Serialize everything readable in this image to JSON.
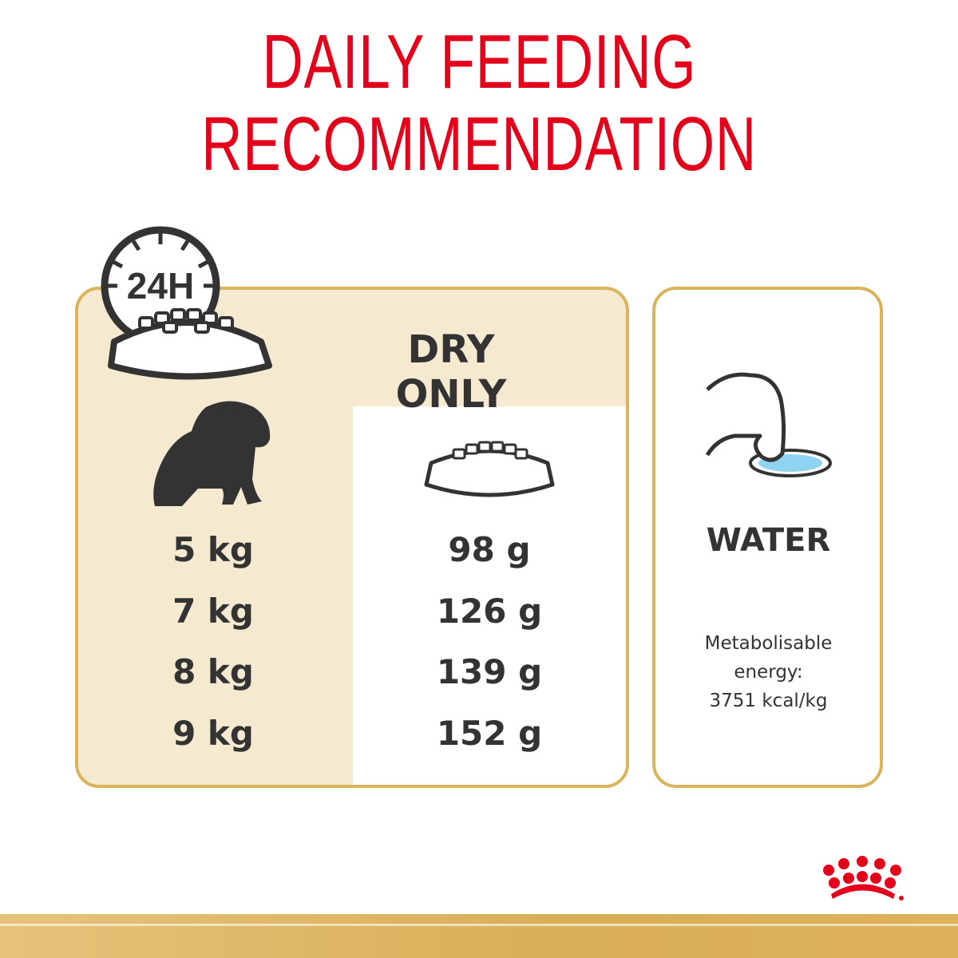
{
  "title": {
    "line1": "DAILY FEEDING",
    "line2": "RECOMMENDATION"
  },
  "clock_icon": {
    "label": "24H",
    "icon": "clock-with-food-bowl-icon"
  },
  "feeding": {
    "heading": "DRY ONLY",
    "rows": [
      {
        "weight": "5 kg",
        "amount": "98 g"
      },
      {
        "weight": "7 kg",
        "amount": "126 g"
      },
      {
        "weight": "8 kg",
        "amount": "139 g"
      },
      {
        "weight": "9 kg",
        "amount": "152 g"
      }
    ]
  },
  "water": {
    "label": "WATER",
    "icon": "water-bowl-icon"
  },
  "energy": {
    "line1": "Metabolisable",
    "line2": "energy:",
    "line3": "3751 kcal/kg"
  },
  "logo": {
    "brand": "Royal Canin"
  },
  "colors": {
    "accent": "#e2001a",
    "gold": "#d9b45a",
    "panel": "#f5ead0",
    "text": "#333333"
  }
}
